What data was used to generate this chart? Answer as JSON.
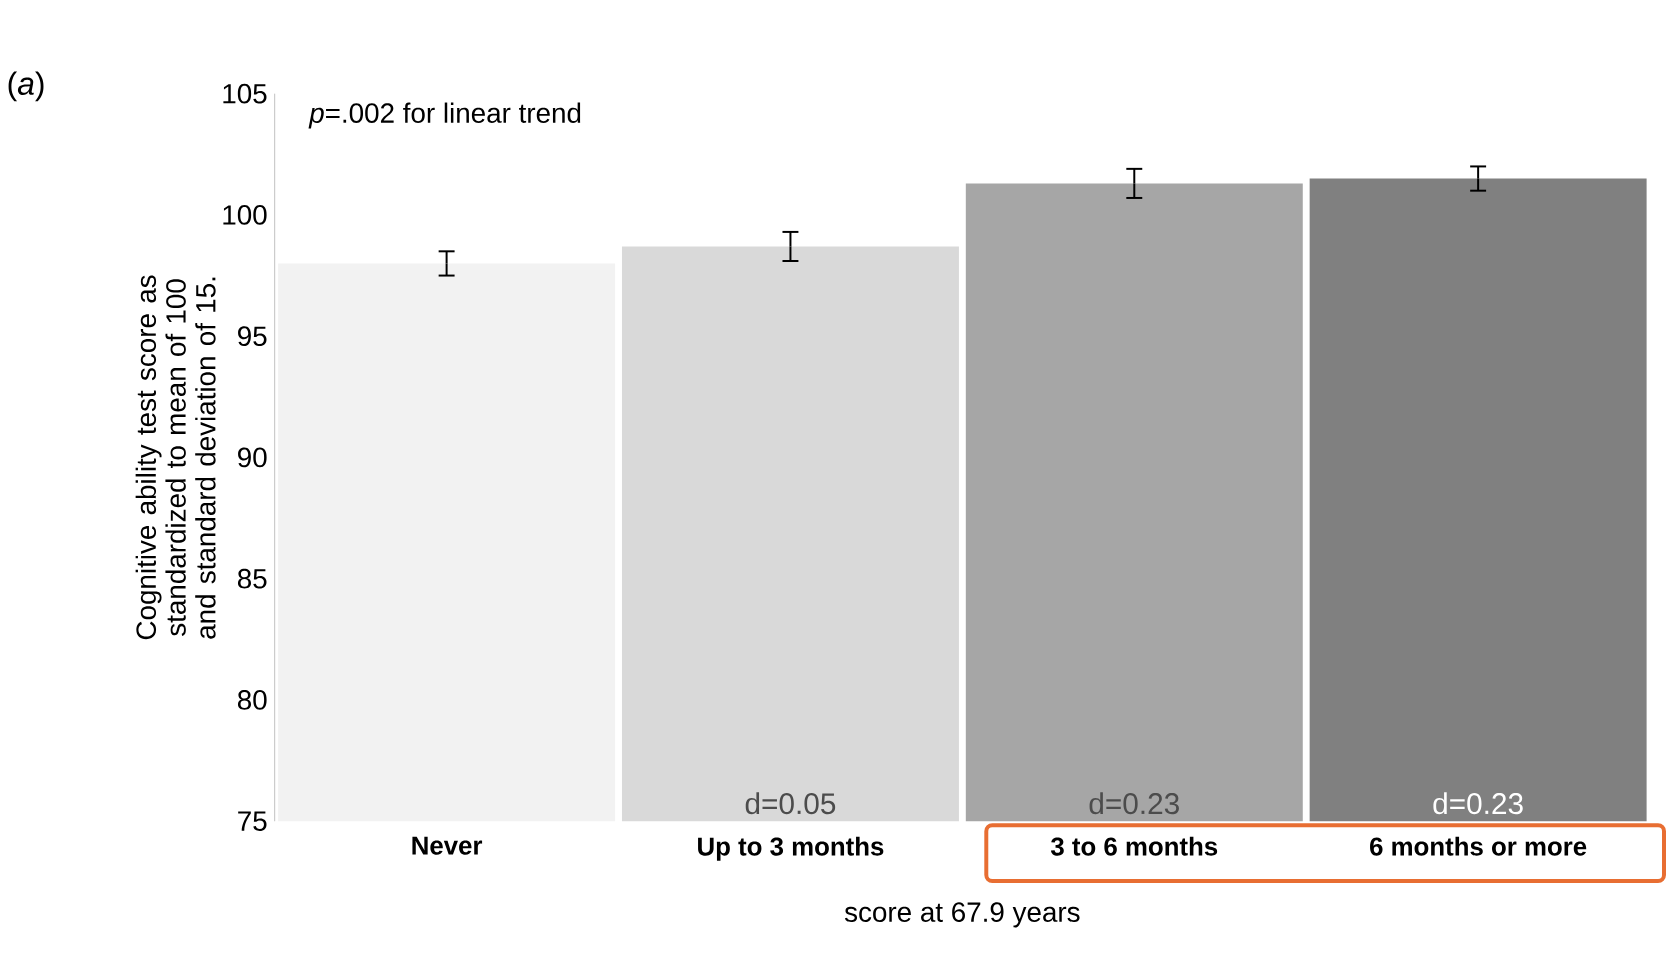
{
  "chart_data": {
    "type": "bar",
    "title": "(*a*)",
    "ylabel": "Cognitive ability test score as standardized to mean of 100 and standard deviation of 15.",
    "xlabel": "score at 67.9 years",
    "categories": [
      "Never",
      "Up to 3 months",
      "3 to 6 months",
      "6 months or more"
    ],
    "values": [
      98.0,
      98.7,
      101.3,
      101.5
    ],
    "errors": [
      0.5,
      0.6,
      0.6,
      0.5
    ],
    "colors": [
      "#f2f2f2",
      "#d9d9d9",
      "#a6a6a6",
      "#808080"
    ],
    "ylim": [
      75,
      105
    ],
    "yticks": [
      75,
      80,
      85,
      90,
      95,
      100,
      105
    ],
    "annotations": [
      "*p*=.002 for linear trend",
      "d=0.05",
      "d=0.23",
      "d=0.23"
    ]
  }
}
